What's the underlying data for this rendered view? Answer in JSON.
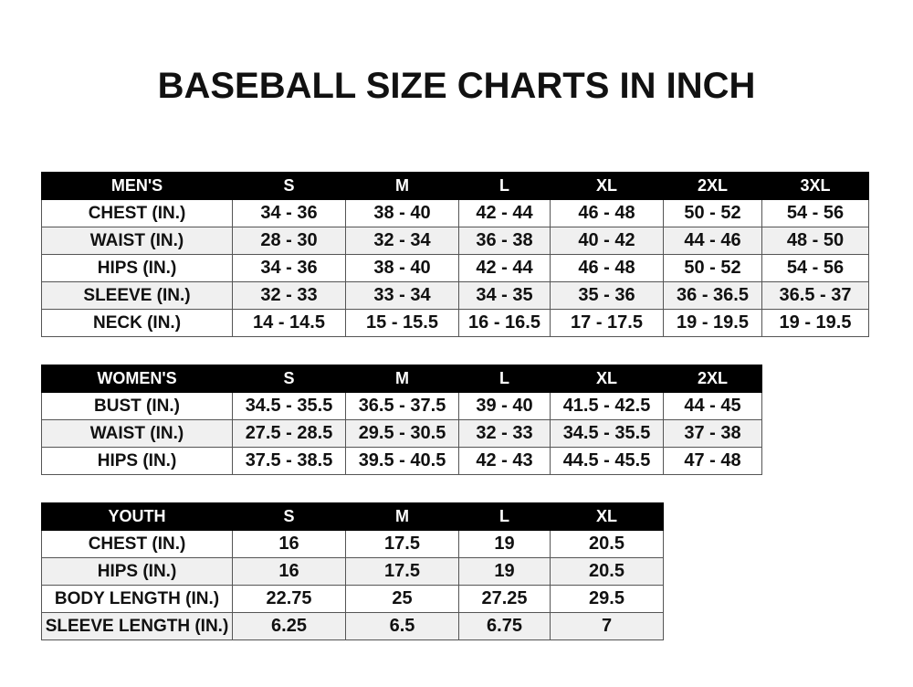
{
  "title": "BASEBALL SIZE CHARTS IN INCH",
  "mens": {
    "header": [
      "MEN'S",
      "S",
      "M",
      "L",
      "XL",
      "2XL",
      "3XL"
    ],
    "rows": [
      [
        "CHEST (IN.)",
        "34 - 36",
        "38 - 40",
        "42 - 44",
        "46 - 48",
        "50 - 52",
        "54 - 56"
      ],
      [
        "WAIST (IN.)",
        "28 - 30",
        "32 - 34",
        "36 - 38",
        "40 - 42",
        "44 - 46",
        "48 - 50"
      ],
      [
        "HIPS (IN.)",
        "34 - 36",
        "38 - 40",
        "42 - 44",
        "46 - 48",
        "50 - 52",
        "54 - 56"
      ],
      [
        "SLEEVE (IN.)",
        "32 - 33",
        "33 - 34",
        "34 - 35",
        "35 - 36",
        "36 - 36.5",
        "36.5 - 37"
      ],
      [
        "NECK (IN.)",
        "14 - 14.5",
        "15 - 15.5",
        "16 - 16.5",
        "17 - 17.5",
        "19 - 19.5",
        "19 - 19.5"
      ]
    ]
  },
  "womens": {
    "header": [
      "WOMEN'S",
      "S",
      "M",
      "L",
      "XL",
      "2XL"
    ],
    "rows": [
      [
        "BUST (IN.)",
        "34.5 - 35.5",
        "36.5 - 37.5",
        "39 - 40",
        "41.5 - 42.5",
        "44 - 45"
      ],
      [
        "WAIST (IN.)",
        "27.5 - 28.5",
        "29.5 - 30.5",
        "32 - 33",
        "34.5 - 35.5",
        "37 - 38"
      ],
      [
        "HIPS (IN.)",
        "37.5 - 38.5",
        "39.5 - 40.5",
        "42 - 43",
        "44.5 - 45.5",
        "47 - 48"
      ]
    ]
  },
  "youth": {
    "header": [
      "YOUTH",
      "S",
      "M",
      "L",
      "XL"
    ],
    "rows": [
      [
        "CHEST (IN.)",
        "16",
        "17.5",
        "19",
        "20.5"
      ],
      [
        "HIPS (IN.)",
        "16",
        "17.5",
        "19",
        "20.5"
      ],
      [
        "BODY LENGTH (IN.)",
        "22.75",
        "25",
        "27.25",
        "29.5"
      ],
      [
        "SLEEVE LENGTH (IN.)",
        "6.25",
        "6.5",
        "6.75",
        "7"
      ]
    ]
  }
}
